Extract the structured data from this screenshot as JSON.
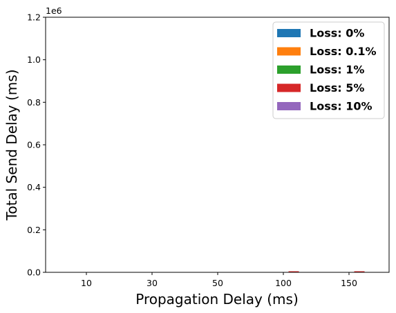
{
  "chart_data": {
    "type": "bar",
    "title": "",
    "xlabel": "Propagation Delay (ms)",
    "ylabel": "Total Send Delay (ms)",
    "y_offset_label": "1e6",
    "ylim": [
      0,
      1200000
    ],
    "yticks": [
      0,
      200000,
      400000,
      600000,
      800000,
      1000000,
      1200000
    ],
    "ytick_labels": [
      "0.0",
      "0.2",
      "0.4",
      "0.6",
      "0.8",
      "1.0",
      "1.2"
    ],
    "categories": [
      "10",
      "30",
      "50",
      "100",
      "150"
    ],
    "legend_position": "top-right",
    "grid": false,
    "series": [
      {
        "name": "Loss: 0%",
        "color": "#1f77b4",
        "values": [
          0,
          0,
          0,
          0,
          0
        ]
      },
      {
        "name": "Loss: 0.1%",
        "color": "#ff7f0e",
        "values": [
          0,
          0,
          0,
          0,
          0
        ]
      },
      {
        "name": "Loss: 1%",
        "color": "#2ca02c",
        "values": [
          0,
          0,
          0,
          0,
          0
        ]
      },
      {
        "name": "Loss: 5%",
        "color": "#d62728",
        "values": [
          0,
          0,
          0,
          5000,
          5000
        ]
      },
      {
        "name": "Loss: 10%",
        "color": "#9467bd",
        "values": [
          0,
          0,
          0,
          0,
          0
        ]
      }
    ]
  }
}
